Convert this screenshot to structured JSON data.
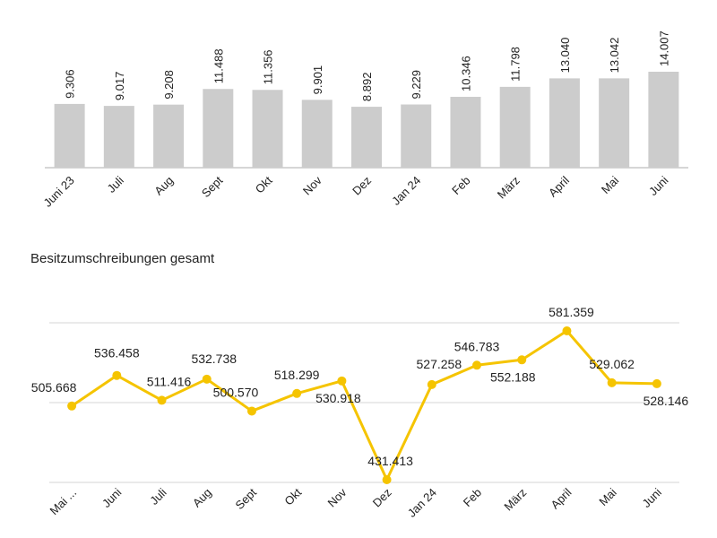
{
  "chart_data": [
    {
      "type": "bar",
      "title": "",
      "categories": [
        "Juni 23",
        "Juli",
        "Aug",
        "Sept",
        "Okt",
        "Nov",
        "Dez",
        "Jan 24",
        "Feb",
        "März",
        "April",
        "Mai",
        "Juni"
      ],
      "values": [
        9306,
        9017,
        9208,
        11488,
        11356,
        9901,
        8892,
        9229,
        10346,
        11798,
        13040,
        13042,
        14007
      ],
      "labels": [
        "9.306",
        "9.017",
        "9.208",
        "11.488",
        "11.356",
        "9.901",
        "8.892",
        "9.229",
        "10.346",
        "11.798",
        "13.040",
        "13.042",
        "14.007"
      ],
      "ylim": [
        0,
        14007
      ],
      "grid": false,
      "color": "#cccccc"
    },
    {
      "type": "line",
      "title": "Besitzumschreibungen gesamt",
      "categories": [
        "Mai ...",
        "Juni",
        "Juli",
        "Aug",
        "Sept",
        "Okt",
        "Nov",
        "Dez",
        "Jan 24",
        "Feb",
        "März",
        "April",
        "Mai",
        "Juni"
      ],
      "values": [
        505668,
        536458,
        511416,
        532738,
        500570,
        518299,
        530918,
        431413,
        527258,
        546783,
        552188,
        581359,
        529062,
        528146
      ],
      "labels": [
        "505.668",
        "536.458",
        "511.416",
        "532.738",
        "500.570",
        "518.299",
        "530.918",
        "431.413",
        "527.258",
        "546.783",
        "552.188",
        "581.359",
        "529.062",
        "528.146"
      ],
      "ylim": [
        431413,
        581359
      ],
      "grid": true,
      "color": "#f5c400"
    }
  ]
}
